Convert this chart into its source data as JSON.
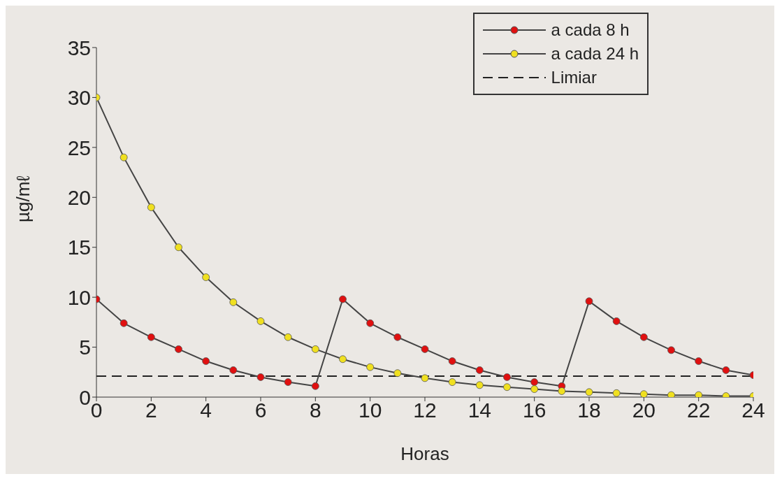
{
  "chart_data": {
    "type": "line",
    "xlabel": "Horas",
    "ylabel": "µg/mℓ",
    "x": [
      0,
      1,
      2,
      3,
      4,
      5,
      6,
      7,
      8,
      9,
      10,
      11,
      12,
      13,
      14,
      15,
      16,
      17,
      18,
      19,
      20,
      21,
      22,
      23,
      24
    ],
    "series": [
      {
        "name": "a cada 8 h",
        "color": "#e01010",
        "values": [
          9.8,
          7.4,
          6.0,
          4.8,
          3.6,
          2.7,
          2.0,
          1.5,
          1.1,
          9.8,
          7.4,
          6.0,
          4.8,
          3.6,
          2.7,
          2.0,
          1.5,
          1.1,
          9.6,
          7.6,
          6.0,
          4.7,
          3.6,
          2.7,
          2.2
        ]
      },
      {
        "name": "a cada 24 h",
        "color": "#f0e020",
        "values": [
          30,
          24,
          19,
          15,
          12,
          9.5,
          7.6,
          6.0,
          4.8,
          3.8,
          3.0,
          2.4,
          1.9,
          1.5,
          1.2,
          1.0,
          0.8,
          0.6,
          0.5,
          0.4,
          0.3,
          0.2,
          0.2,
          0.1,
          0.1
        ]
      }
    ],
    "ref_lines": [
      {
        "axis": "y",
        "value": 2.1,
        "label": "Limiar",
        "color": "#222222",
        "line_style": "dashed"
      }
    ],
    "xlim": [
      0,
      24
    ],
    "xticks": [
      0,
      2,
      4,
      6,
      8,
      10,
      12,
      14,
      16,
      18,
      20,
      22,
      24
    ],
    "ylim": [
      0,
      35
    ],
    "yticks": [
      0,
      5,
      10,
      15,
      20,
      25,
      30,
      35
    ],
    "grid": false,
    "legend": "top right",
    "marker": "circle",
    "line_style": "solid"
  }
}
